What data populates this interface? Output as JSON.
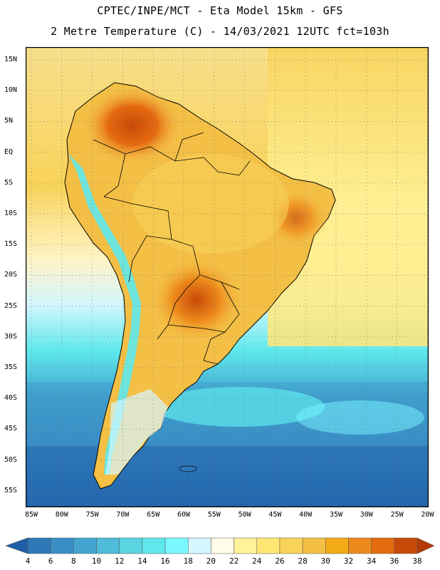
{
  "header": {
    "line1": "CPTEC/INPE/MCT -  Eta Model 15km - GFS",
    "line2": "2 Metre Temperature (C) - 14/03/2021 12UTC fct=103h"
  },
  "lat_labels": [
    "15N",
    "10N",
    "5N",
    "EQ",
    "5S",
    "10S",
    "15S",
    "20S",
    "25S",
    "30S",
    "35S",
    "40S",
    "45S",
    "50S",
    "55S"
  ],
  "lon_labels": [
    "85W",
    "80W",
    "75W",
    "70W",
    "65W",
    "60W",
    "55W",
    "50W",
    "45W",
    "40W",
    "35W",
    "30W",
    "25W",
    "20W"
  ],
  "legend": {
    "labels": [
      "4",
      "6",
      "8",
      "10",
      "12",
      "14",
      "16",
      "18",
      "20",
      "22",
      "24",
      "26",
      "28",
      "30",
      "32",
      "34",
      "36",
      "38"
    ],
    "colors": [
      "#1f5ea8",
      "#2f78b8",
      "#3a8ec6",
      "#44a6d0",
      "#4fbcd8",
      "#5ad4e0",
      "#5ee8ec",
      "#7af7ff",
      "#d4f6ff",
      "#fffbe6",
      "#fff39a",
      "#ffe673",
      "#f8d35a",
      "#f3bf45",
      "#f4ab18",
      "#ee8a1c",
      "#e66a10",
      "#c84a08",
      "#b43a06"
    ]
  },
  "map": {
    "ocean_pacific_north": "#f7df8c",
    "ocean_south_cold": "#2f78b8",
    "land_warm": "#f3bf45",
    "land_hot": "#e07a20",
    "andes_cold": "#5ee8ec"
  }
}
